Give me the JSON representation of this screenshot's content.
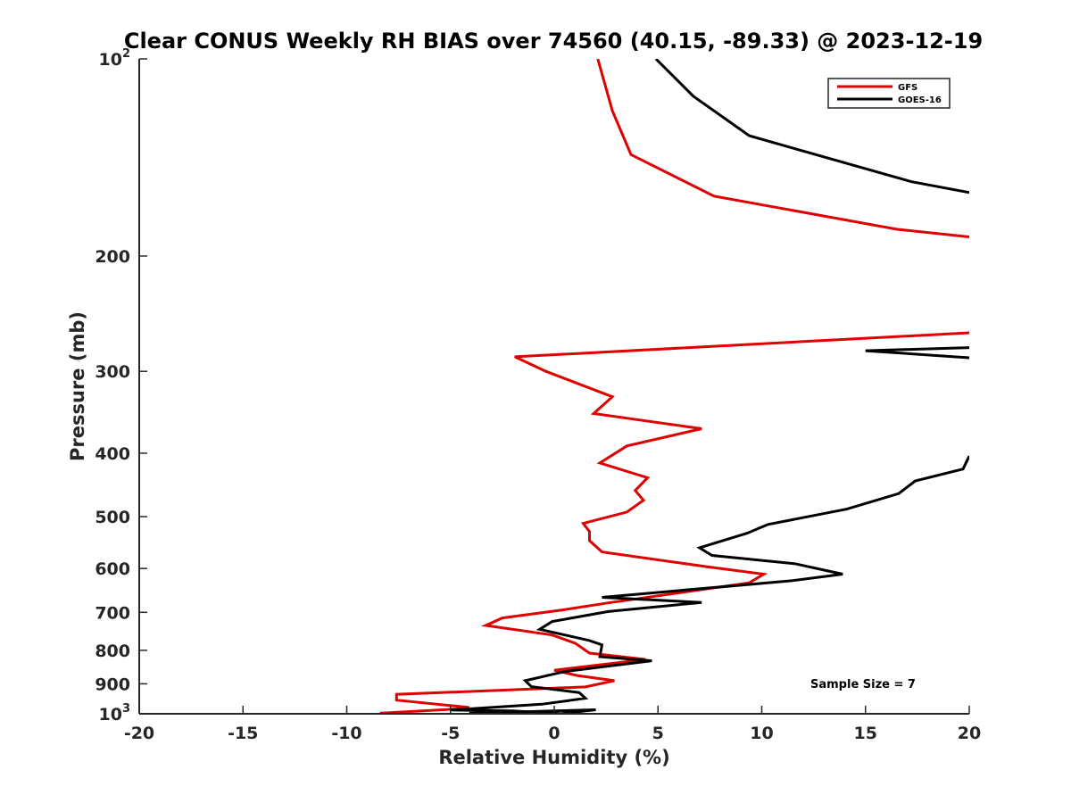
{
  "chart_data": {
    "type": "line",
    "title": "Clear CONUS Weekly RH BIAS over 74560 (40.15, -89.33) @ 2023-12-19",
    "xlabel": "Relative Humidity (%)",
    "ylabel": "Pressure (mb)",
    "xlim": [
      -20,
      20
    ],
    "ylim": [
      100,
      1000
    ],
    "y_scale": "log",
    "y_reversed": true,
    "grid": false,
    "legend_position": "top-right",
    "x_ticks": [
      "-20",
      "-15",
      "-10",
      "-5",
      "0",
      "5",
      "10",
      "15",
      "20"
    ],
    "y_ticks": [
      {
        "value": 100,
        "base": "10",
        "exp": "2"
      },
      {
        "value": 200,
        "base": "200",
        "exp": ""
      },
      {
        "value": 300,
        "base": "300",
        "exp": ""
      },
      {
        "value": 400,
        "base": "400",
        "exp": ""
      },
      {
        "value": 500,
        "base": "500",
        "exp": ""
      },
      {
        "value": 600,
        "base": "600",
        "exp": ""
      },
      {
        "value": 700,
        "base": "700",
        "exp": ""
      },
      {
        "value": 800,
        "base": "800",
        "exp": ""
      },
      {
        "value": 900,
        "base": "900",
        "exp": ""
      },
      {
        "value": 1000,
        "base": "10",
        "exp": "3"
      }
    ],
    "annotation": "Sample Size = 7",
    "series": [
      {
        "name": "GFS",
        "color": "#e00000",
        "points": [
          [
            2.1,
            100
          ],
          [
            2.8,
            120
          ],
          [
            3.7,
            140
          ],
          [
            7.7,
            162
          ],
          [
            16.5,
            182
          ],
          [
            20.0,
            187
          ],
          [
            null,
            null
          ],
          [
            20.0,
            262
          ],
          [
            -1.9,
            285
          ],
          [
            -0.4,
            300
          ],
          [
            2.8,
            328
          ],
          [
            1.9,
            348
          ],
          [
            7.1,
            367
          ],
          [
            3.5,
            390
          ],
          [
            2.2,
            414
          ],
          [
            4.5,
            436
          ],
          [
            3.9,
            456
          ],
          [
            4.3,
            472
          ],
          [
            3.5,
            492
          ],
          [
            1.4,
            512
          ],
          [
            1.7,
            527
          ],
          [
            1.7,
            544
          ],
          [
            2.3,
            566
          ],
          [
            7.3,
            596
          ],
          [
            10.1,
            612
          ],
          [
            9.4,
            631
          ],
          [
            2.6,
            677
          ],
          [
            0.4,
            694
          ],
          [
            -2.5,
            714
          ],
          [
            -3.3,
            733
          ],
          [
            -0.1,
            758
          ],
          [
            1.0,
            780
          ],
          [
            1.7,
            808
          ],
          [
            4.4,
            826
          ],
          [
            0.0,
            858
          ],
          [
            1.1,
            874
          ],
          [
            2.9,
            890
          ],
          [
            1.5,
            910
          ],
          [
            -7.6,
            934
          ],
          [
            -7.6,
            953
          ],
          [
            -4.1,
            978
          ],
          [
            -4.6,
            983
          ],
          [
            -8.4,
            998
          ]
        ]
      },
      {
        "name": "GOES-16",
        "color": "#000000",
        "points": [
          [
            4.9,
            100
          ],
          [
            6.7,
            114
          ],
          [
            9.4,
            131
          ],
          [
            17.2,
            154
          ],
          [
            20.0,
            160
          ],
          [
            null,
            null
          ],
          [
            20.0,
            276
          ],
          [
            15.0,
            279
          ],
          [
            20.0,
            286
          ],
          [
            null,
            null
          ],
          [
            20.0,
            404
          ],
          [
            19.7,
            423
          ],
          [
            17.4,
            441
          ],
          [
            16.6,
            461
          ],
          [
            14.1,
            487
          ],
          [
            10.3,
            514
          ],
          [
            9.3,
            530
          ],
          [
            7.0,
            558
          ],
          [
            7.6,
            573
          ],
          [
            11.6,
            590
          ],
          [
            13.9,
            612
          ],
          [
            11.5,
            626
          ],
          [
            2.3,
            664
          ],
          [
            7.1,
            676
          ],
          [
            2.6,
            698
          ],
          [
            -0.1,
            723
          ],
          [
            -0.7,
            743
          ],
          [
            1.7,
            773
          ],
          [
            2.3,
            785
          ],
          [
            2.2,
            818
          ],
          [
            4.7,
            830
          ],
          [
            0.5,
            862
          ],
          [
            -1.4,
            890
          ],
          [
            -1.1,
            909
          ],
          [
            1.2,
            928
          ],
          [
            1.5,
            947
          ],
          [
            -0.6,
            967
          ],
          [
            -5.0,
            987
          ],
          [
            -2.0,
            990
          ],
          [
            0.3,
            1000
          ],
          [
            2.0,
            986
          ],
          [
            -4.1,
            998
          ]
        ]
      }
    ]
  }
}
